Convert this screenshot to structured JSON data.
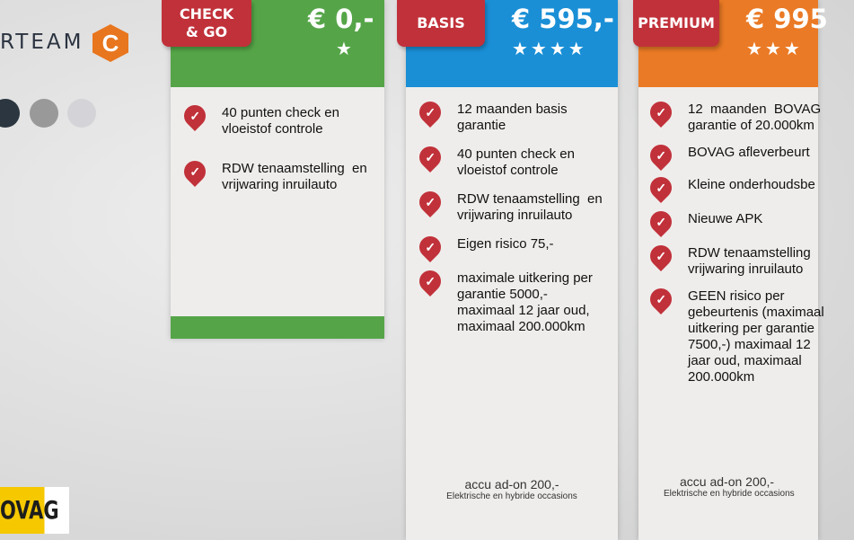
{
  "brand": {
    "text": "RTEAM",
    "logo": "C",
    "bovag": "OVAG"
  },
  "dots": [
    "#2b3640",
    "#999999",
    "#d4d4d8"
  ],
  "colors": {
    "green": "#55a548",
    "blue": "#1a8fd6",
    "orange": "#ea7a25",
    "red": "#c1313a"
  },
  "cards": [
    {
      "tab": "CHECK\n& GO",
      "tab1": "CHECK",
      "tab2": "& GO",
      "price": "€ 0,-",
      "stars": "★",
      "features": [
        "40 punten check en\nvloeistof controle",
        "RDW tenaamstelling  en\nvrijwaring inruilauto"
      ]
    },
    {
      "tab": "BASIS",
      "price": "€ 595,-",
      "stars": "★★★★",
      "features": [
        "12 maanden basis\ngarantie",
        "40 punten check en\nvloeistof controle",
        "RDW tenaamstelling  en\nvrijwaring inruilauto",
        "Eigen risico 75,-",
        "maximale uitkering per\ngarantie 5000,-\nmaximaal 12 jaar oud,\nmaximaal 200.000km"
      ],
      "footer_main": "accu ad-on  200,-",
      "footer_sub": "Elektrische en hybride occasions"
    },
    {
      "tab": "PREMIUM",
      "price": "€ 995",
      "stars": "★★★",
      "features": [
        "12  maanden  BOVAG\ngarantie of 20.000km",
        "BOVAG afleverbeurt",
        "Kleine onderhoudsbe",
        "Nieuwe APK",
        "RDW tenaamstelling\nvrijwaring inruilauto",
        "GEEN risico per\ngebeurtenis (maximaal\nuitkering per garantie\n7500,-) maximaal 12\njaar oud, maximaal\n200.000km"
      ],
      "footer_main": "accu ad-on  200,-",
      "footer_sub": "Elektrische en hybride occasions"
    }
  ]
}
